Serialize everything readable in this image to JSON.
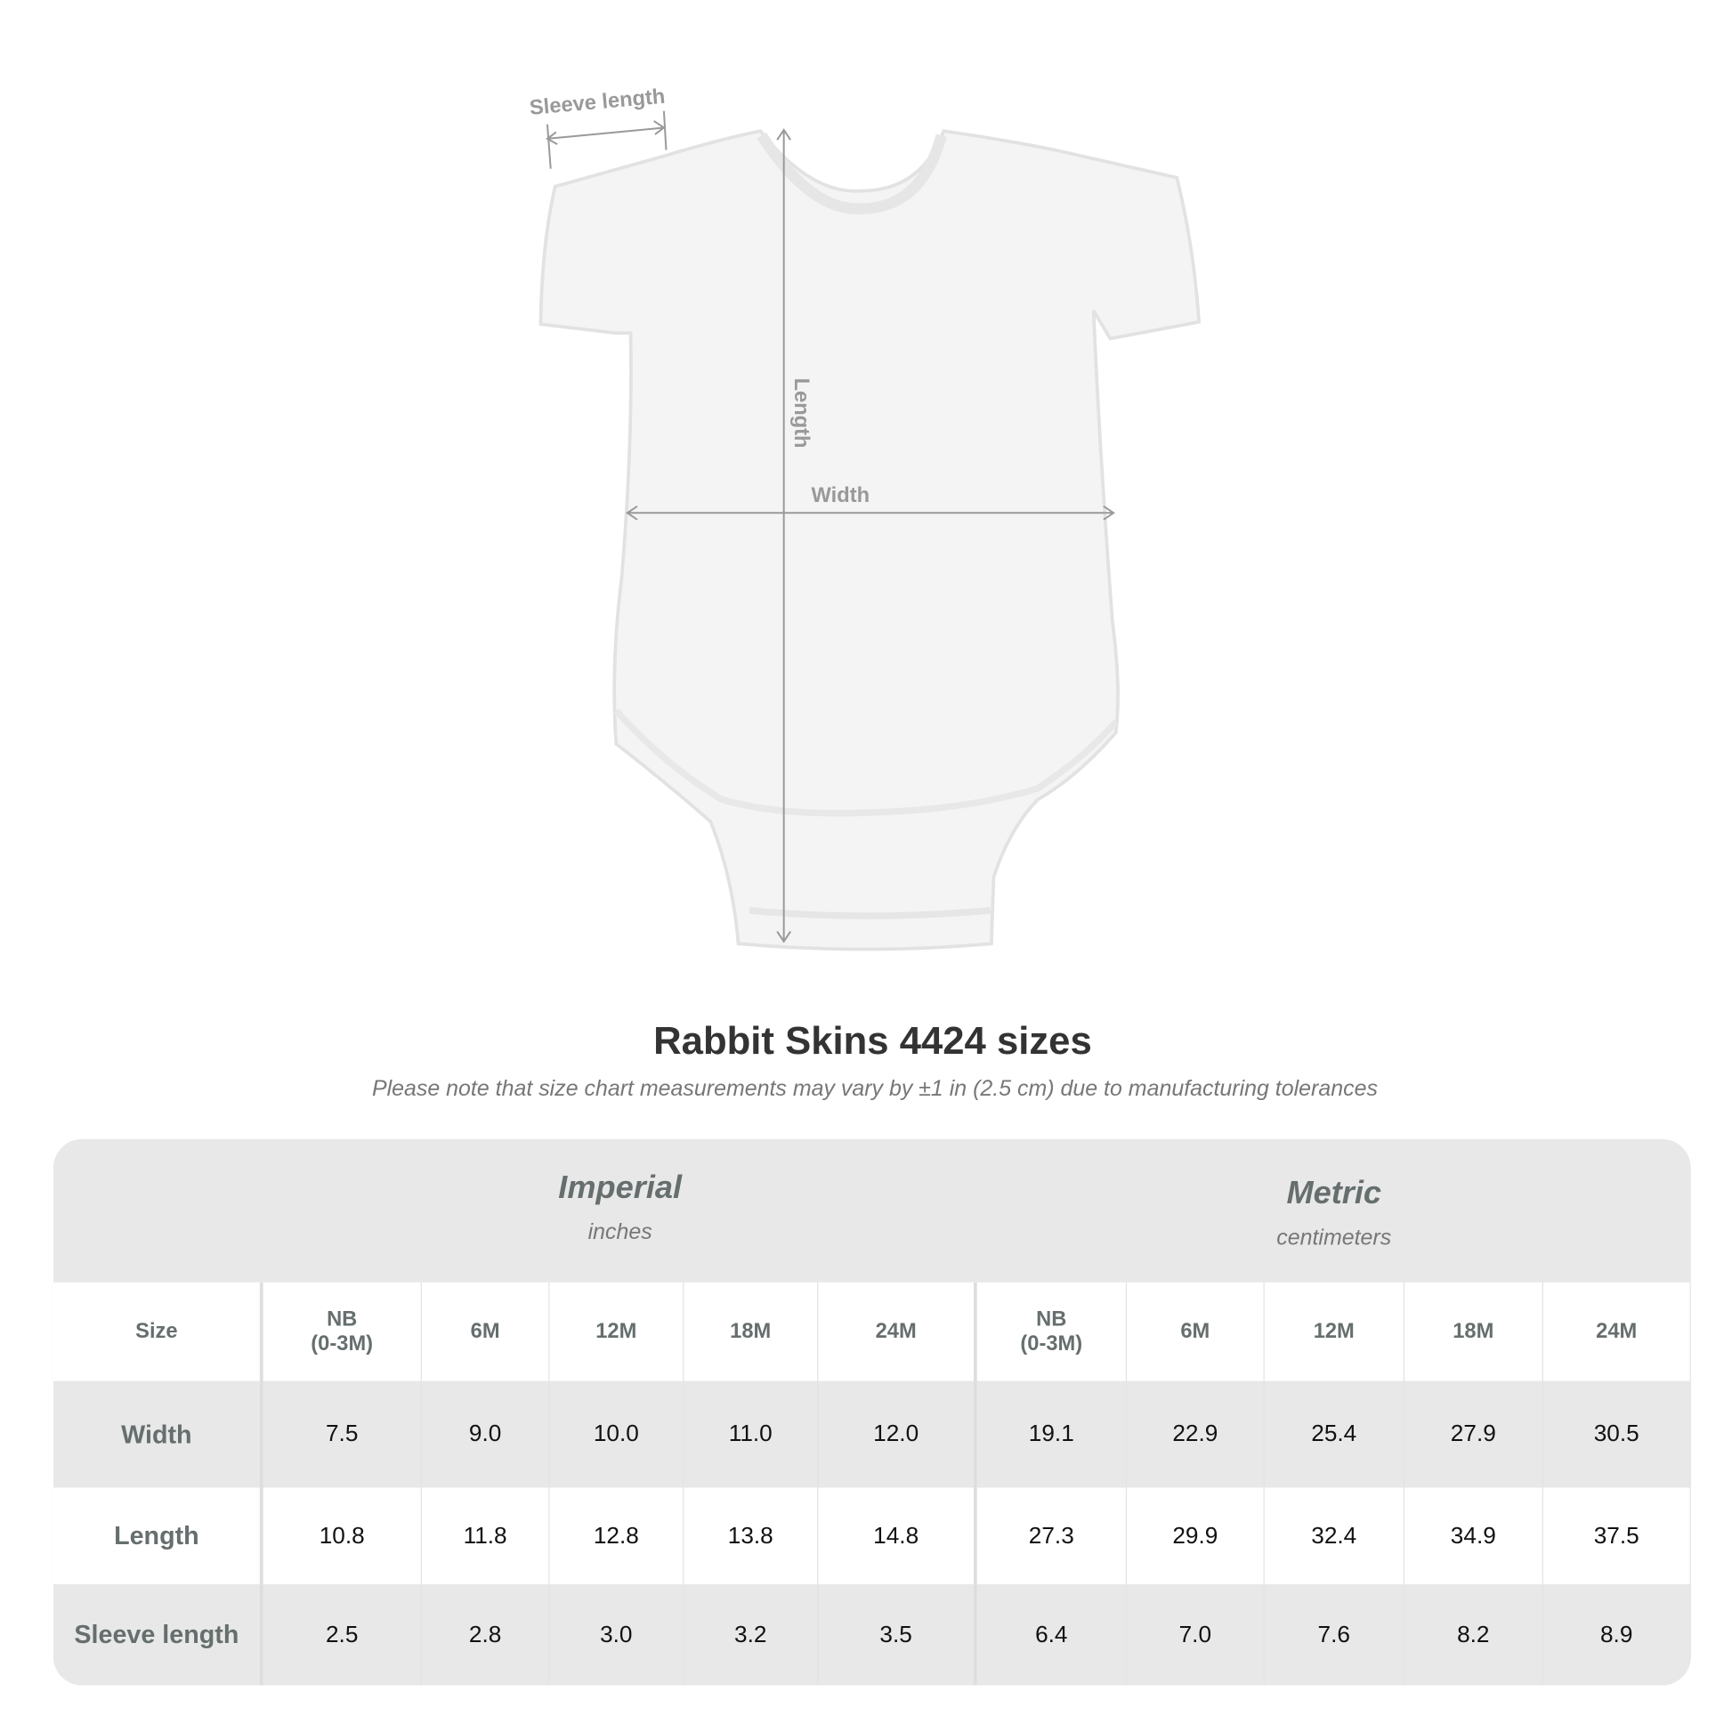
{
  "diagram": {
    "sleeve_label": "Sleeve length",
    "length_label": "Length",
    "width_label": "Width"
  },
  "title": "Rabbit Skins 4424 sizes",
  "note": "Please note that size chart measurements may vary by ±1 in (2.5 cm) due to manufacturing tolerances",
  "table": {
    "imperial": {
      "name": "Imperial",
      "unit": "inches"
    },
    "metric": {
      "name": "Metric",
      "unit": "centimeters"
    },
    "header": [
      "Size",
      "NB\n(0-3M)",
      "6M",
      "12M",
      "18M",
      "24M",
      "NB\n(0-3M)",
      "6M",
      "12M",
      "18M",
      "24M"
    ],
    "rows": [
      [
        "Width",
        "7.5",
        "9.0",
        "10.0",
        "11.0",
        "12.0",
        "19.1",
        "22.9",
        "25.4",
        "27.9",
        "30.5"
      ],
      [
        "Length",
        "10.8",
        "11.8",
        "12.8",
        "13.8",
        "14.8",
        "27.3",
        "29.9",
        "32.4",
        "34.9",
        "37.5"
      ],
      [
        "Sleeve length",
        "2.5",
        "2.8",
        "3.0",
        "3.2",
        "3.5",
        "6.4",
        "7.0",
        "7.6",
        "8.2",
        "8.9"
      ]
    ]
  }
}
